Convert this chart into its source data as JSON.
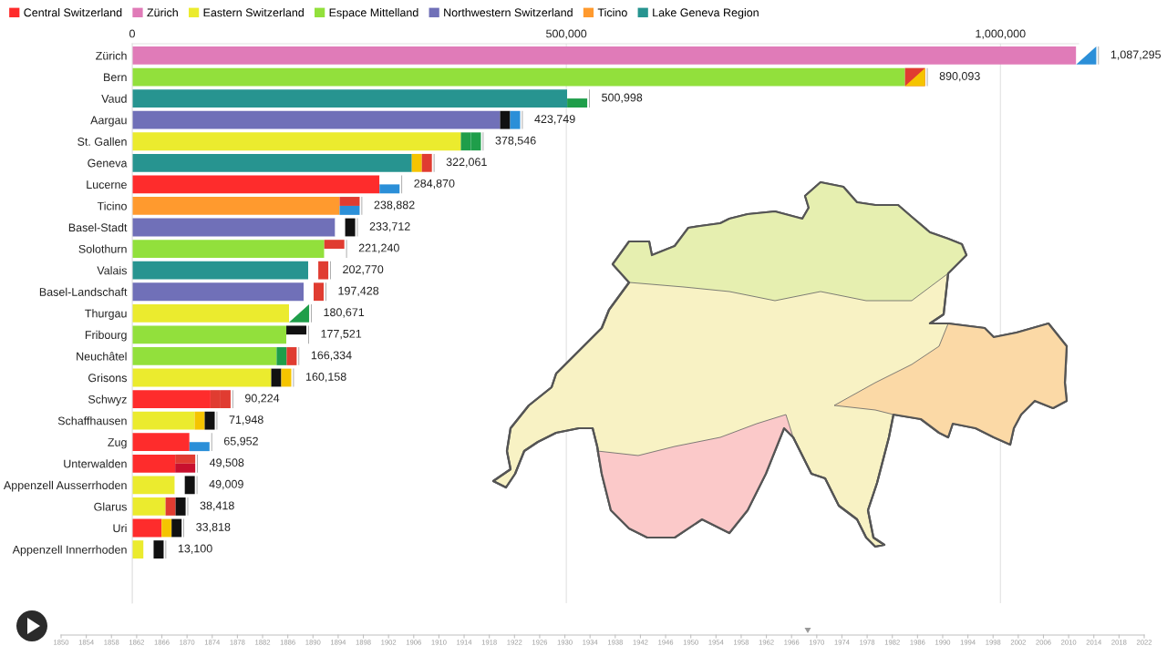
{
  "chart_data": {
    "type": "bar",
    "orientation": "horizontal",
    "categories": [
      "Zürich",
      "Bern",
      "Vaud",
      "Aargau",
      "St. Gallen",
      "Geneva",
      "Lucerne",
      "Ticino",
      "Basel-Stadt",
      "Solothurn",
      "Valais",
      "Basel-Landschaft",
      "Thurgau",
      "Fribourg",
      "Neuchâtel",
      "Grisons",
      "Schwyz",
      "Schaffhausen",
      "Zug",
      "Unterwalden",
      "Appenzell Ausserrhoden",
      "Glarus",
      "Uri",
      "Appenzell Innerrhoden"
    ],
    "series": [
      {
        "name": "Central Switzerland",
        "color": "#fe2c2c",
        "values": [
          null,
          null,
          null,
          null,
          null,
          null,
          284870,
          null,
          null,
          null,
          null,
          null,
          null,
          null,
          null,
          null,
          90224,
          null,
          65952,
          49508,
          null,
          null,
          33818,
          null
        ],
        "value_labels": [
          null,
          null,
          null,
          null,
          null,
          null,
          "284,870",
          null,
          null,
          null,
          null,
          null,
          null,
          null,
          null,
          null,
          "90,224",
          null,
          "65,952",
          "49,508",
          null,
          null,
          "33,818",
          null
        ]
      },
      {
        "name": "Zürich",
        "color": "#e07bb8",
        "values": [
          1087295,
          null,
          null,
          null,
          null,
          null,
          null,
          null,
          null,
          null,
          null,
          null,
          null,
          null,
          null,
          null,
          null,
          null,
          null,
          null,
          null,
          null,
          null,
          null
        ],
        "value_labels": [
          "1,087,295",
          null,
          null,
          null,
          null,
          null,
          null,
          null,
          null,
          null,
          null,
          null,
          null,
          null,
          null,
          null,
          null,
          null,
          null,
          null,
          null,
          null,
          null,
          null
        ]
      },
      {
        "name": "Eastern Switzerland",
        "color": "#ebeb2e",
        "values": [
          null,
          null,
          null,
          null,
          378546,
          null,
          null,
          null,
          null,
          null,
          null,
          null,
          180671,
          null,
          null,
          160158,
          null,
          71948,
          null,
          null,
          49009,
          38418,
          null,
          13100
        ],
        "value_labels": [
          null,
          null,
          null,
          null,
          "378,546",
          null,
          null,
          null,
          null,
          null,
          null,
          null,
          "180,671",
          null,
          null,
          "160,158",
          null,
          "71,948",
          null,
          null,
          "49,009",
          "38,418",
          null,
          "13,100"
        ]
      },
      {
        "name": "Espace Mittelland",
        "color": "#92e03c",
        "values": [
          null,
          890093,
          null,
          null,
          null,
          null,
          null,
          null,
          null,
          221240,
          null,
          null,
          null,
          177521,
          166334,
          null,
          null,
          null,
          null,
          null,
          null,
          null,
          null,
          null
        ],
        "value_labels": [
          null,
          "890,093",
          null,
          null,
          null,
          null,
          null,
          null,
          null,
          "221,240",
          null,
          null,
          null,
          "177,521",
          "166,334",
          null,
          null,
          null,
          null,
          null,
          null,
          null,
          null,
          null
        ]
      },
      {
        "name": "Northwestern Switzerland",
        "color": "#7070b8",
        "values": [
          null,
          null,
          null,
          423749,
          null,
          null,
          null,
          null,
          233712,
          null,
          null,
          197428,
          null,
          null,
          null,
          null,
          null,
          null,
          null,
          null,
          null,
          null,
          null,
          null
        ],
        "value_labels": [
          null,
          null,
          null,
          "423,749",
          null,
          null,
          null,
          null,
          "233,712",
          null,
          null,
          "197,428",
          null,
          null,
          null,
          null,
          null,
          null,
          null,
          null,
          null,
          null,
          null,
          null
        ]
      },
      {
        "name": "Ticino",
        "color": "#ff9a2e",
        "values": [
          null,
          null,
          null,
          null,
          null,
          null,
          null,
          238882,
          null,
          null,
          null,
          null,
          null,
          null,
          null,
          null,
          null,
          null,
          null,
          null,
          null,
          null,
          null,
          null
        ],
        "value_labels": [
          null,
          null,
          null,
          null,
          null,
          null,
          null,
          "238,882",
          null,
          null,
          null,
          null,
          null,
          null,
          null,
          null,
          null,
          null,
          null,
          null,
          null,
          null,
          null,
          null
        ]
      },
      {
        "name": "Lake Geneva Region",
        "color": "#279490",
        "values": [
          null,
          null,
          500998,
          null,
          null,
          322061,
          null,
          null,
          null,
          null,
          202770,
          null,
          null,
          null,
          null,
          null,
          null,
          null,
          null,
          null,
          null,
          null,
          null,
          null
        ],
        "value_labels": [
          null,
          null,
          "500,998",
          null,
          null,
          "322,061",
          null,
          null,
          null,
          null,
          "202,770",
          null,
          null,
          null,
          null,
          null,
          null,
          null,
          null,
          null,
          null,
          null,
          null,
          null
        ]
      }
    ],
    "xlim": [
      0,
      1090000
    ],
    "xticks": [
      0,
      {
        "value": 500000,
        "label": "500,000"
      },
      {
        "value": 1000000,
        "label": "1,000,000"
      }
    ],
    "grid": "x",
    "legend": "top left",
    "annotations": [
      "1850",
      "1854",
      "1858",
      "1862",
      "1866",
      "1870",
      "1874",
      "1878",
      "1882",
      "1886",
      "1890",
      "1894",
      "1898",
      "1902",
      "1906",
      "1910",
      "1914",
      "1918",
      "1922",
      "1926",
      "1930",
      "1934",
      "1938",
      "1942",
      "1946",
      "1950",
      "1954",
      "1958",
      "1962",
      "1966",
      "1970",
      "1974",
      "1978",
      "1982",
      "1986",
      "1990",
      "1994",
      "1998",
      "2002",
      "2006",
      "2010",
      "2014",
      "2018",
      "2022"
    ]
  }
}
